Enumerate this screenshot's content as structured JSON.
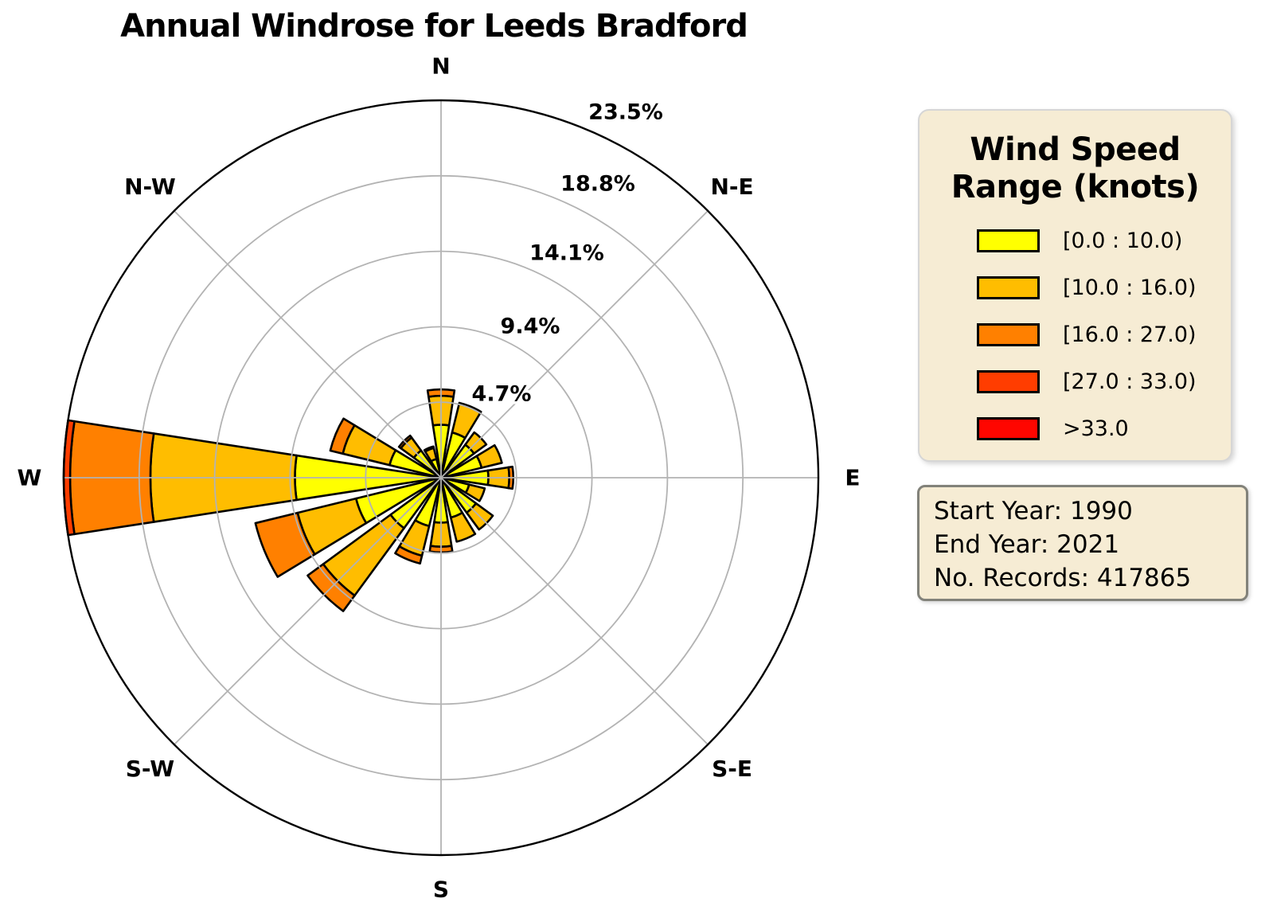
{
  "title": "Annual Windrose for Leeds Bradford",
  "legend": {
    "title_lines": [
      "Wind Speed",
      "Range (knots)"
    ],
    "items": [
      {
        "color": "#ffff00",
        "label": "[0.0 : 10.0)"
      },
      {
        "color": "#ffbd00",
        "label": "[10.0 : 16.0)"
      },
      {
        "color": "#ff8000",
        "label": "[16.0 : 27.0)"
      },
      {
        "color": "#ff3d00",
        "label": "[27.0 : 33.0)"
      },
      {
        "color": "#ff0600",
        "label": ">33.0"
      }
    ]
  },
  "info_box": {
    "lines": [
      "Start Year: 1990",
      "End Year: 2021",
      "No. Records: 417865"
    ]
  },
  "chart_data": {
    "type": "windrose",
    "units": "percent of records",
    "rmax_percent": 23.5,
    "radial_ticks": [
      4.7,
      9.4,
      14.1,
      18.8,
      23.5
    ],
    "radial_tick_labels": [
      "4.7%",
      "9.4%",
      "14.1%",
      "18.8%",
      "23.5%"
    ],
    "compass_labels": [
      {
        "azimuth_deg": 0,
        "label": "N"
      },
      {
        "azimuth_deg": 45,
        "label": "N-E"
      },
      {
        "azimuth_deg": 90,
        "label": "E"
      },
      {
        "azimuth_deg": 135,
        "label": "S-E"
      },
      {
        "azimuth_deg": 180,
        "label": "S"
      },
      {
        "azimuth_deg": 225,
        "label": "S-W"
      },
      {
        "azimuth_deg": 270,
        "label": "W"
      },
      {
        "azimuth_deg": 315,
        "label": "N-W"
      }
    ],
    "directions": [
      "N",
      "NNE",
      "NE",
      "ENE",
      "E",
      "ESE",
      "SE",
      "SSE",
      "S",
      "SSW",
      "SW",
      "WSW",
      "W",
      "WNW",
      "NW",
      "NNW"
    ],
    "direction_azimuth_deg": [
      0,
      22.5,
      45,
      67.5,
      90,
      112.5,
      135,
      157.5,
      180,
      202.5,
      225,
      247.5,
      270,
      292.5,
      315,
      337.5
    ],
    "series": [
      {
        "name": "[0.0 : 10.0)",
        "color": "#ffff00",
        "values": [
          3.3,
          2.9,
          2.55,
          2.6,
          2.95,
          1.8,
          2.7,
          2.55,
          2.8,
          3.1,
          3.9,
          5.45,
          9.1,
          3.3,
          2.1,
          1.2
        ]
      },
      {
        "name": "[10.0 : 16.0)",
        "color": "#ffbd00",
        "values": [
          1.8,
          1.9,
          0.95,
          1.3,
          1.3,
          1.0,
          1.3,
          1.55,
          1.5,
          1.9,
          5.2,
          3.75,
          9.0,
          3.0,
          1.0,
          0.7
        ]
      },
      {
        "name": "[16.0 : 27.0)",
        "color": "#ff8000",
        "values": [
          0.4,
          0,
          0,
          0,
          0.25,
          0,
          0,
          0,
          0.35,
          0.5,
          1.2,
          2.7,
          5.0,
          0.8,
          0.15,
          0.1
        ]
      },
      {
        "name": "[27.0 : 33.0)",
        "color": "#ff3d00",
        "values": [
          0,
          0,
          0,
          0,
          0,
          0,
          0,
          0,
          0,
          0,
          0,
          0,
          0.4,
          0,
          0,
          0
        ]
      },
      {
        "name": ">33.0",
        "color": "#ff0600",
        "values": [
          0,
          0,
          0,
          0,
          0,
          0,
          0,
          0,
          0,
          0,
          0,
          0,
          0,
          0,
          0,
          0
        ]
      }
    ]
  }
}
